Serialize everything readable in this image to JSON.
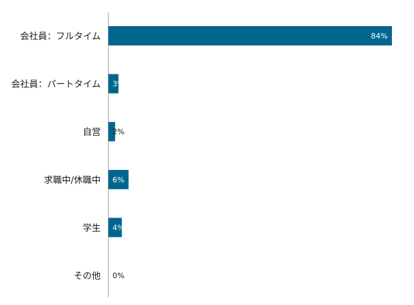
{
  "chart_data": {
    "type": "bar",
    "orientation": "horizontal",
    "categories": [
      "会社員：フルタイム",
      "会社員：パートタイム",
      "自営",
      "求職中/休職中",
      "学生",
      "その他"
    ],
    "values": [
      84,
      3,
      2,
      6,
      4,
      0
    ],
    "value_labels": [
      "84%",
      "3%",
      "2%",
      "6%",
      "4%",
      "0%"
    ],
    "xlim": [
      0,
      86
    ],
    "bar_color": "#00668e",
    "axis_color": "#9e9e9e",
    "label_color_inside": "#ffffff",
    "label_color_outside": "#1a1a1a",
    "grid": false,
    "legend": "none"
  }
}
